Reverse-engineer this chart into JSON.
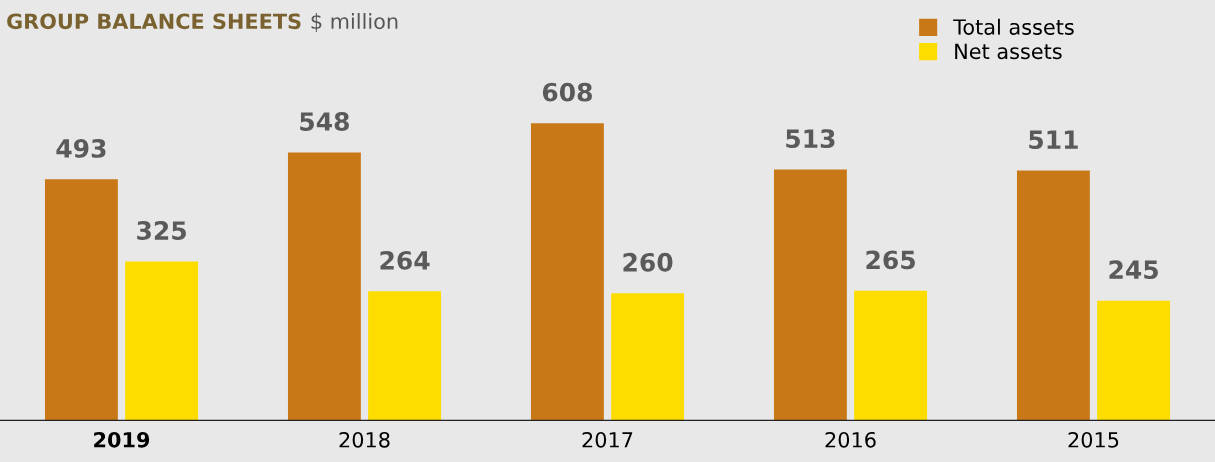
{
  "chart_data": {
    "type": "bar",
    "title": "GROUP BALANCE SHEETS",
    "subtitle": "$ million",
    "categories": [
      "2019",
      "2018",
      "2017",
      "2016",
      "2015"
    ],
    "series": [
      {
        "name": "Total assets",
        "color": "#c97818",
        "values": [
          493,
          548,
          608,
          513,
          511
        ]
      },
      {
        "name": "Net assets",
        "color": "#fddc00",
        "values": [
          325,
          264,
          260,
          265,
          245
        ]
      }
    ],
    "data_labels": true,
    "legend": "top right",
    "grid": false
  }
}
